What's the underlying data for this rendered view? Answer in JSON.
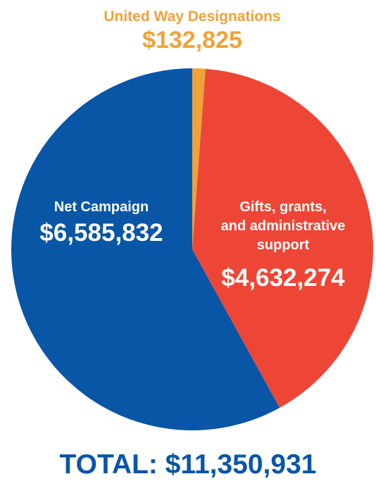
{
  "chart_data": {
    "type": "pie",
    "title": "",
    "total_label": "TOTAL: $11,350,931",
    "slices": [
      {
        "name_lines": [
          "United Way Designations"
        ],
        "value": 132825,
        "value_label": "$132,825",
        "color": "#EFA23A",
        "label_color": "#EFA23A",
        "label_position": "outside-top"
      },
      {
        "name_lines": [
          "Gifts, grants,",
          "and administrative",
          "support"
        ],
        "value": 4632274,
        "value_label": "$4,632,274",
        "color": "#EE4636",
        "label_color": "#FFFFFF",
        "label_position": "inside-right"
      },
      {
        "name_lines": [
          "Net Campaign"
        ],
        "value": 6585832,
        "value_label": "$6,585,832",
        "color": "#0A56A6",
        "label_color": "#FFFFFF",
        "label_position": "inside-left"
      }
    ],
    "start_angle": "top",
    "direction": "clockwise",
    "total_color": "#0A56A6"
  }
}
